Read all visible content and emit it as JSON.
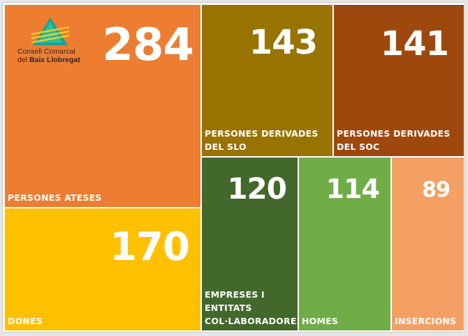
{
  "logo": {
    "line1": "Consell Comarcal",
    "line2_prefix": "del ",
    "line2_bold": "Baix Llobregat"
  },
  "tiles": [
    {
      "id": "persones-ateses",
      "value": "284",
      "label": "PERSONES ATESES",
      "color": "#ED7D31"
    },
    {
      "id": "dones",
      "value": "170",
      "label": "DONES",
      "color": "#FFC000"
    },
    {
      "id": "persones-derivades-slo",
      "value": "143",
      "label": "PERSONES DERIVADES DEL SLO",
      "color": "#997300"
    },
    {
      "id": "persones-derivades-soc",
      "value": "141",
      "label": "PERSONES DERIVADES DEL SOC",
      "color": "#9E480E"
    },
    {
      "id": "empreses-entitats",
      "value": "120",
      "label": "EMPRESES I ENTITATS COL·LABORADORES",
      "color": "#43682B"
    },
    {
      "id": "homes",
      "value": "114",
      "label": "HOMES",
      "color": "#70AD47"
    },
    {
      "id": "insercions",
      "value": "89",
      "label": "INSERCIONS",
      "color": "#F4A064"
    }
  ]
}
